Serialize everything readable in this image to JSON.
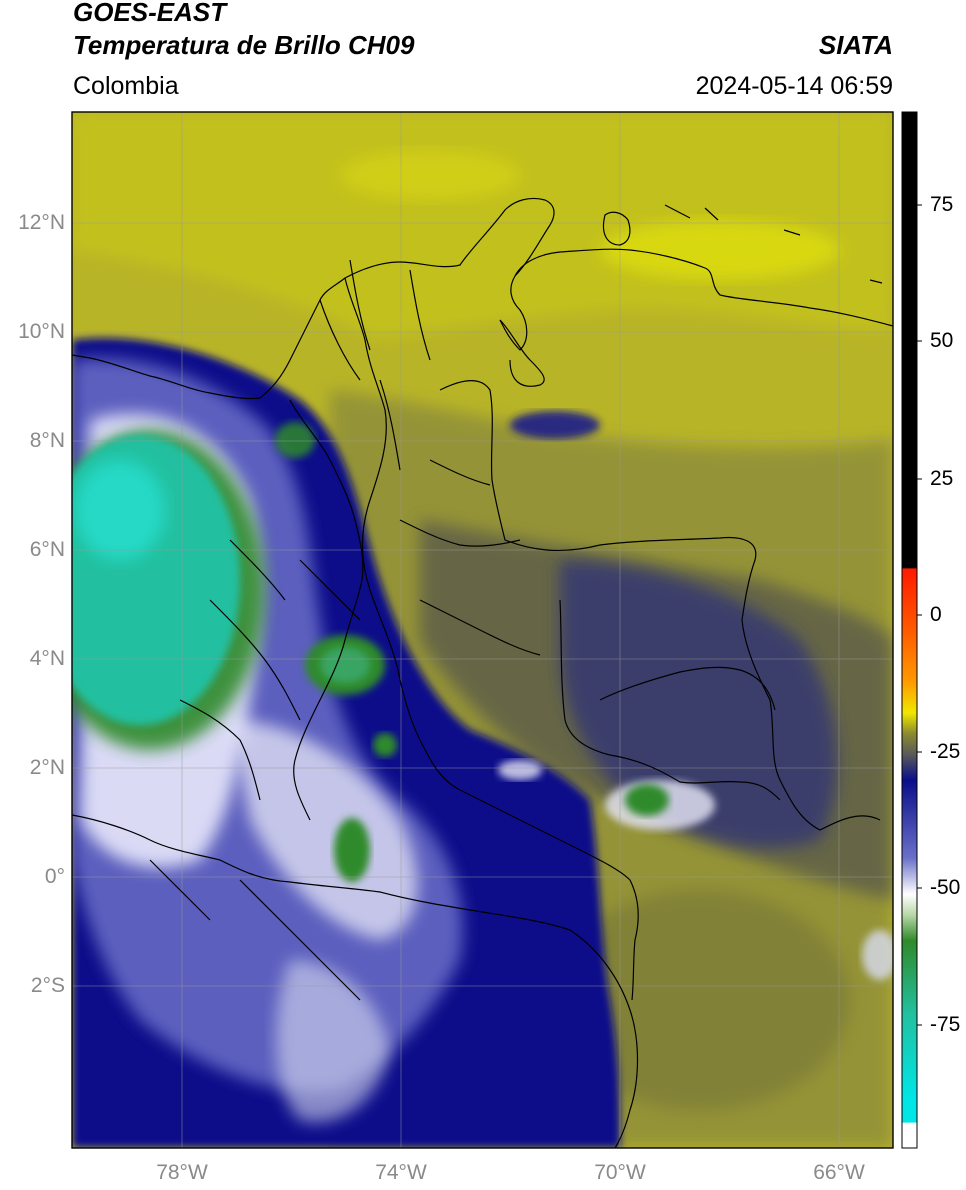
{
  "header": {
    "title_line1": "GOES-EAST",
    "title_line2": "Temperatura de Brillo CH09",
    "agency": "SIATA",
    "region": "Colombia",
    "timestamp": "2024-05-14 06:59"
  },
  "map": {
    "lat_labels": [
      "12°N",
      "10°N",
      "8°N",
      "6°N",
      "4°N",
      "2°N",
      "0°",
      "2°S"
    ],
    "lon_labels": [
      "78°W",
      "74°W",
      "70°W",
      "66°W"
    ]
  },
  "colorbar": {
    "tick_labels": [
      "75",
      "50",
      "25",
      "0",
      "-25",
      "-50",
      "-75"
    ],
    "colors": {
      "black": "#000000",
      "red": "#ff1a00",
      "orange": "#ff8c00",
      "yellow": "#f0e800",
      "olive": "#8a8a30",
      "gray": "#5a5a5a",
      "navy": "#0a0f8a",
      "white": "#ffffff",
      "green": "#2f8a2a",
      "teal": "#22c0a0",
      "cyan": "#00e5e5"
    }
  }
}
